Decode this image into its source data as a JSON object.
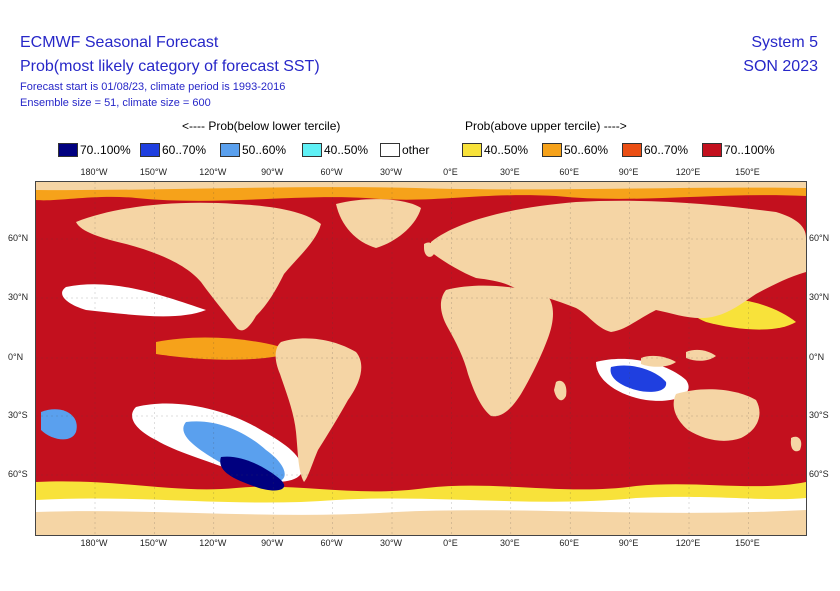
{
  "header": {
    "title": "ECMWF Seasonal Forecast",
    "subtitle": "Prob(most likely category of forecast SST)",
    "forecast_info": "Forecast start is 01/08/23, climate period is 1993-2016",
    "ensemble_info": "Ensemble size = 51, climate size = 600",
    "system": "System 5",
    "season": "SON 2023"
  },
  "legend": {
    "below_heading": "<---- Prob(below lower tercile)",
    "above_heading": "Prob(above upper tercile) ---->",
    "items": [
      {
        "label": "70..100%",
        "color": "#00007f"
      },
      {
        "label": "60..70%",
        "color": "#1f3fe0"
      },
      {
        "label": "50..60%",
        "color": "#5aa0ee"
      },
      {
        "label": "40..50%",
        "color": "#5ff0f5"
      },
      {
        "label": "other",
        "color": "#ffffff"
      },
      {
        "label": "40..50%",
        "color": "#f8e23a"
      },
      {
        "label": "50..60%",
        "color": "#f6a21a"
      },
      {
        "label": "60..70%",
        "color": "#ea4e14"
      },
      {
        "label": "70..100%",
        "color": "#c3101e"
      }
    ]
  },
  "map": {
    "land_color": "#f5d5a5",
    "ocean_dominant_color": "#c3101e",
    "lon_ticks": [
      "180°W",
      "150°W",
      "120°W",
      "90°W",
      "60°W",
      "30°W",
      "0°E",
      "30°E",
      "60°E",
      "90°E",
      "120°E",
      "150°E"
    ],
    "lat_ticks": [
      "60°N",
      "30°N",
      "0°N",
      "30°S",
      "60°S"
    ]
  }
}
